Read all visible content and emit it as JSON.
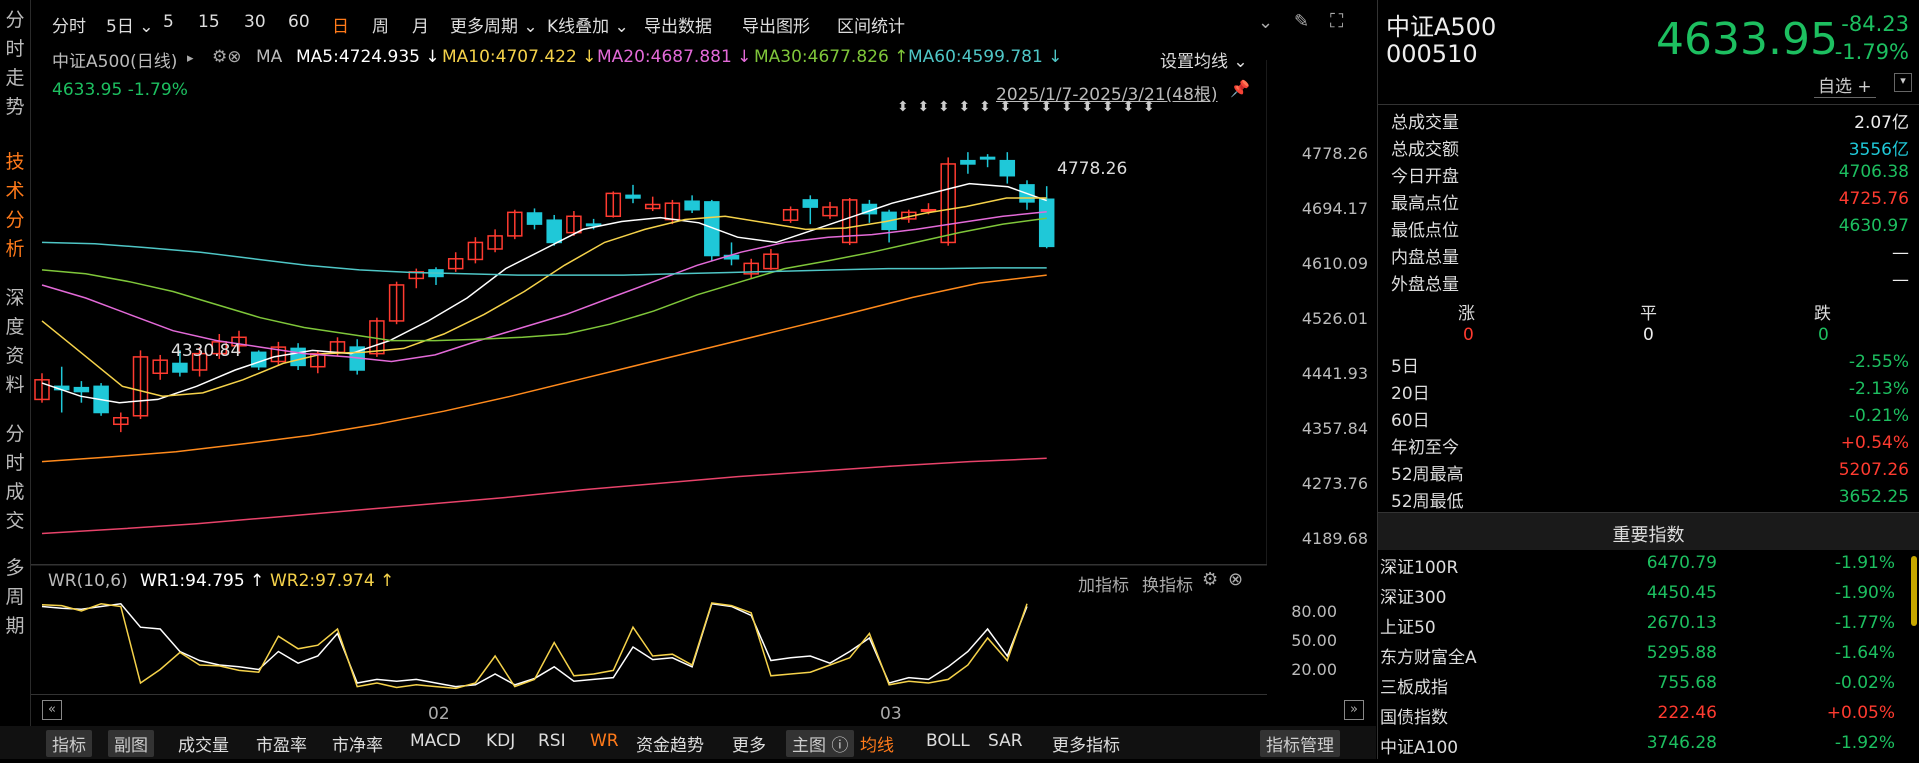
{
  "left_tabs": [
    "分时走势",
    "技术分析",
    "深度资料",
    "分时成交",
    "多周期"
  ],
  "toolbar": {
    "items": [
      "分时",
      "5日",
      "5",
      "15",
      "30",
      "60",
      "日",
      "周",
      "月",
      "更多周期",
      "K线叠加",
      "导出数据",
      "导出图形",
      "区间统计"
    ],
    "active": "日"
  },
  "chart_header": {
    "name": "中证A500(日线)",
    "ma_label": "MA",
    "ma5": "MA5:4724.935",
    "ma10": "MA10:4707.422",
    "ma20": "MA20:4687.881",
    "ma30": "MA30:4677.826",
    "ma60": "MA60:4599.781",
    "set_ma": "设置均线",
    "price_line": "4633.95 -1.79%",
    "range": "2025/1/7-2025/3/21(48根)"
  },
  "colors": {
    "up": "#ff3b30",
    "down": "#1fc8d8",
    "ma5": "#ffffff",
    "ma10": "#f5d24a",
    "ma20": "#e36ad8",
    "ma30": "#7fc63a",
    "ma60": "#4fc6c6",
    "ma120": "#ff8a1c",
    "ma250": "#e8436a"
  },
  "y_axis": [
    "4778.26",
    "4694.17",
    "4610.09",
    "4526.01",
    "4441.93",
    "4357.84",
    "4273.76",
    "4189.68"
  ],
  "annotations": {
    "low": "4330.84",
    "high": "4778.26"
  },
  "wr": {
    "label": "WR(10,6)",
    "wr1": "WR1:94.795",
    "wr2": "WR2:97.974",
    "add": "加指标",
    "change": "换指标",
    "ticks": [
      "80.00",
      "50.00",
      "20.00"
    ]
  },
  "x_axis": [
    "02",
    "03"
  ],
  "bottom_tabs": [
    "指标",
    "副图",
    "成交量",
    "市盈率",
    "市净率",
    "MACD",
    "KDJ",
    "RSI",
    "WR",
    "资金趋势",
    "更多",
    "主图",
    "均线",
    "BOLL",
    "SAR",
    "更多指标",
    "指标管理"
  ],
  "quote": {
    "name": "中证A500",
    "code": "000510",
    "price": "4633.95",
    "change": "-84.23",
    "pct": "-1.79%",
    "watch": "自选 +"
  },
  "stats": [
    {
      "k": "总成交量",
      "v": "2.07亿",
      "c": "white"
    },
    {
      "k": "总成交额",
      "v": "3556亿",
      "c": "cyan"
    },
    {
      "k": "今日开盘",
      "v": "4706.38",
      "c": "green"
    },
    {
      "k": "最高点位",
      "v": "4725.76",
      "c": "red"
    },
    {
      "k": "最低点位",
      "v": "4630.97",
      "c": "green"
    },
    {
      "k": "内盘总量",
      "v": "—",
      "c": "white"
    },
    {
      "k": "外盘总量",
      "v": "—",
      "c": "white"
    }
  ],
  "updown": {
    "up_label": "涨",
    "flat_label": "平",
    "down_label": "跌",
    "up": "0",
    "flat": "0",
    "down": "0"
  },
  "perf": [
    {
      "k": "5日",
      "v": "-2.55%",
      "c": "green"
    },
    {
      "k": "20日",
      "v": "-2.13%",
      "c": "green"
    },
    {
      "k": "60日",
      "v": "-0.21%",
      "c": "green"
    },
    {
      "k": "年初至今",
      "v": "+0.54%",
      "c": "red"
    },
    {
      "k": "52周最高",
      "v": "5207.26",
      "c": "red"
    },
    {
      "k": "52周最低",
      "v": "3652.25",
      "c": "green"
    }
  ],
  "indices_title": "重要指数",
  "indices": [
    {
      "n": "深证100R",
      "p": "6470.79",
      "c": "-1.91%",
      "col": "green"
    },
    {
      "n": "深证300",
      "p": "4450.45",
      "c": "-1.90%",
      "col": "green"
    },
    {
      "n": "上证50",
      "p": "2670.13",
      "c": "-1.77%",
      "col": "green"
    },
    {
      "n": "东方财富全A",
      "p": "5295.88",
      "c": "-1.64%",
      "col": "green"
    },
    {
      "n": "三板成指",
      "p": "755.68",
      "c": "-0.02%",
      "col": "green"
    },
    {
      "n": "国债指数",
      "p": "222.46",
      "c": "+0.05%",
      "col": "red"
    },
    {
      "n": "中证A100",
      "p": "3746.28",
      "c": "-1.92%",
      "col": "green"
    }
  ]
}
